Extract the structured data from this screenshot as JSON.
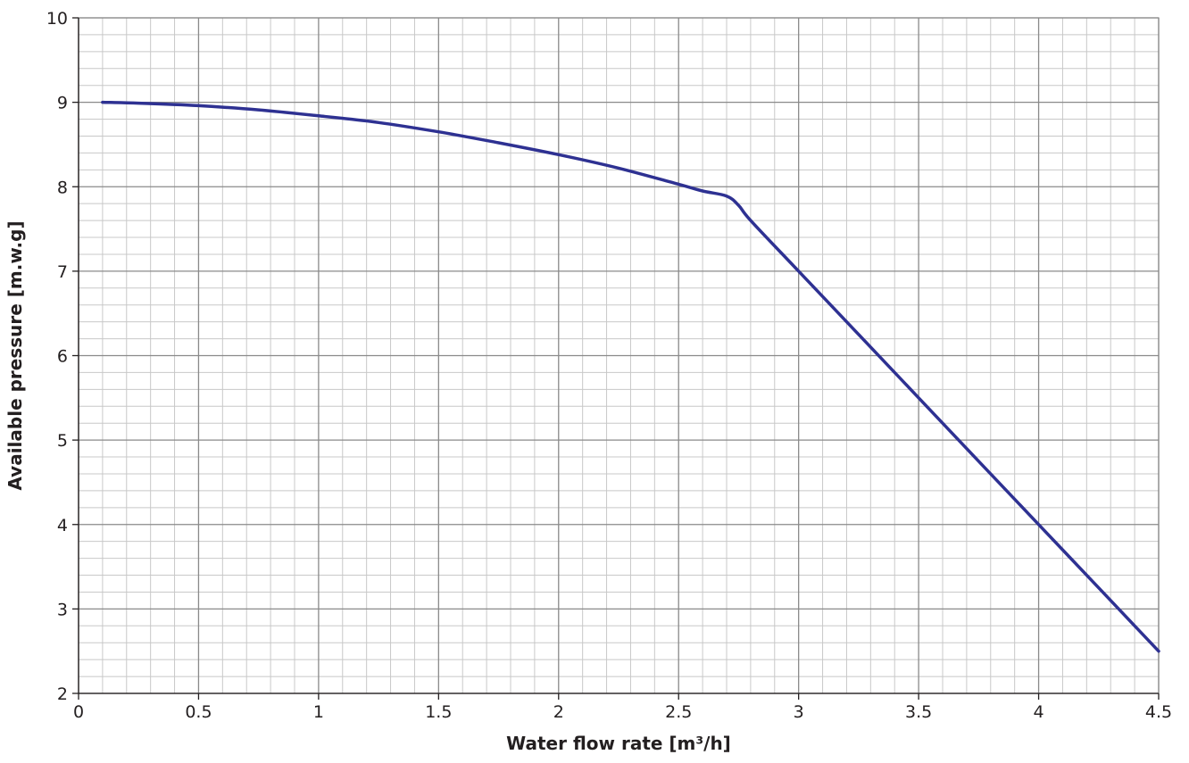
{
  "chart_data": {
    "type": "line",
    "title": "",
    "xlabel": "Water flow rate [m³/h]",
    "ylabel": "Available pressure [m.w.g]",
    "xlim": [
      0,
      4.5
    ],
    "ylim": [
      2,
      10
    ],
    "x_ticks": [
      "0",
      "0.5",
      "1",
      "1.5",
      "2",
      "2.5",
      "3",
      "3.5",
      "4",
      "4.5"
    ],
    "y_ticks": [
      "2",
      "3",
      "4",
      "5",
      "6",
      "7",
      "8",
      "9",
      "10"
    ],
    "grid": true,
    "colors": {
      "line": "#2e3192",
      "major_grid": "#8a8a8a",
      "minor_grid": "#c8c8c8",
      "axis": "#231f20"
    },
    "series": [
      {
        "x": [
          0.1,
          0.25,
          0.5,
          0.75,
          1.0,
          1.25,
          1.5,
          1.75,
          2.0,
          2.25,
          2.5,
          2.6,
          2.7,
          2.75,
          2.8,
          3.0,
          3.25,
          3.5,
          3.75,
          4.0,
          4.25,
          4.5
        ],
        "y": [
          9.0,
          8.99,
          8.96,
          8.91,
          8.84,
          8.76,
          8.65,
          8.52,
          8.38,
          8.22,
          8.03,
          7.95,
          7.89,
          7.78,
          7.6,
          7.0,
          6.25,
          5.5,
          4.75,
          4.0,
          3.25,
          2.5
        ]
      }
    ]
  }
}
